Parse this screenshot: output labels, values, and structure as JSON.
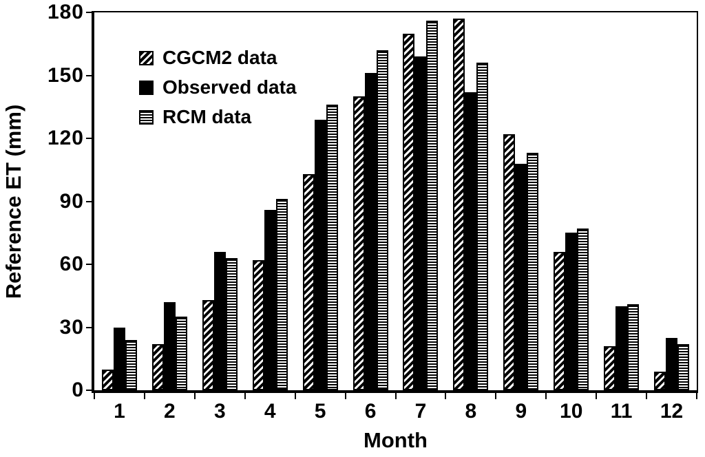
{
  "chart_data": {
    "type": "bar",
    "title": "",
    "xlabel": "Month",
    "ylabel": "Reference ET (mm)",
    "categories": [
      "1",
      "2",
      "3",
      "4",
      "5",
      "6",
      "7",
      "8",
      "9",
      "10",
      "11",
      "12"
    ],
    "series": [
      {
        "name": "CGCM2 data",
        "pattern": "diagonal-hatch",
        "values": [
          10,
          22,
          43,
          62,
          103,
          140,
          170,
          177,
          122,
          66,
          21,
          9
        ]
      },
      {
        "name": "Observed data",
        "pattern": "solid-black",
        "values": [
          30,
          42,
          66,
          86,
          129,
          151,
          159,
          142,
          108,
          75,
          40,
          25
        ]
      },
      {
        "name": "RCM data",
        "pattern": "horizontal-lines",
        "values": [
          24,
          35,
          63,
          91,
          136,
          162,
          176,
          156,
          113,
          77,
          41,
          22
        ]
      }
    ],
    "ylim": [
      0,
      180
    ],
    "yticks": [
      0,
      30,
      60,
      90,
      120,
      150,
      180
    ],
    "grid": false,
    "legend_position": "upper-left-inside"
  },
  "colors": {
    "foreground": "#000000",
    "background": "#ffffff"
  }
}
